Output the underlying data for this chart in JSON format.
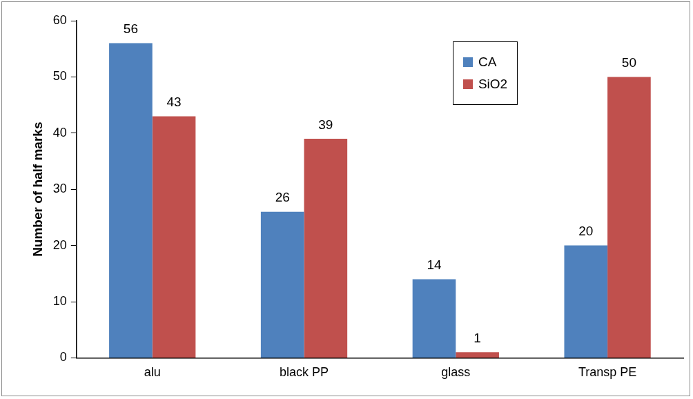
{
  "chart_data": {
    "type": "bar",
    "ylabel": "Number of half marks",
    "categories": [
      "alu",
      "black PP",
      "glass",
      "Transp PE"
    ],
    "series": [
      {
        "name": "CA",
        "color": "#4f81bd",
        "values": [
          56,
          26,
          14,
          20
        ]
      },
      {
        "name": "SiO2",
        "color": "#c0504d",
        "values": [
          43,
          39,
          1,
          50
        ]
      }
    ],
    "ylim": [
      0,
      60
    ],
    "yticks": [
      0,
      10,
      20,
      30,
      40,
      50,
      60
    ],
    "grid": false,
    "legend": "top right",
    "data_labels": true
  }
}
